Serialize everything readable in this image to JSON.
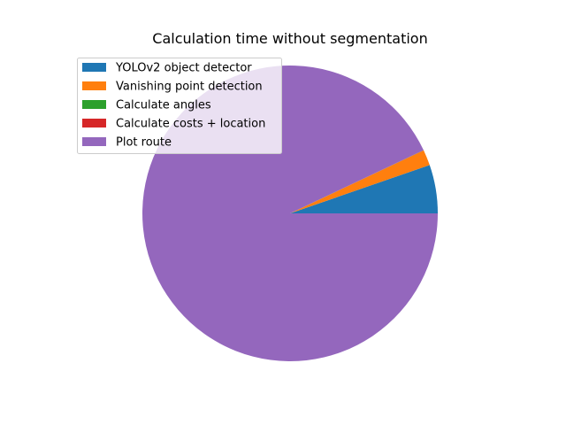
{
  "chart_data": {
    "type": "pie",
    "title": "Calculation time without segmentation",
    "labels": [
      "YOLOv2 object detector",
      "Vanishing point detection",
      "Calculate angles",
      "Calculate costs + location",
      "Plot route"
    ],
    "values": [
      5.3,
      1.7,
      0.02,
      0.02,
      92.96
    ],
    "colors": [
      "#1f77b4",
      "#ff7f0e",
      "#2ca02c",
      "#d62728",
      "#9467bd"
    ],
    "start_angle_deg": 0,
    "direction": "counterclockwise",
    "legend_position": "upper-left"
  }
}
